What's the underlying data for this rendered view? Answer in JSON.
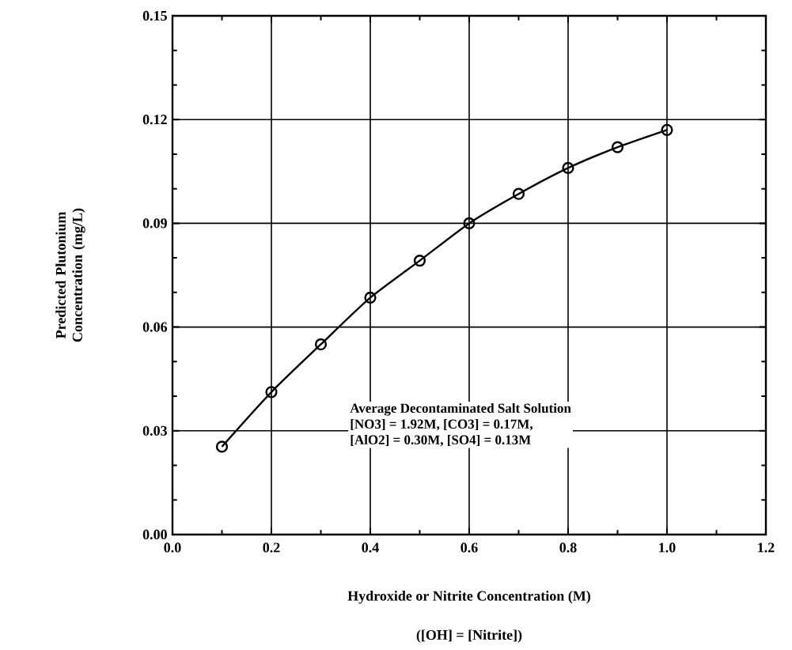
{
  "chart_data": {
    "type": "line",
    "xlabel": "Hydroxide or Nitrite Concentration (M)",
    "ylabel": "Predicted Plutonium Concentration (mg/L)",
    "annotations": [
      "Average Decontaminated Salt Solution",
      "[NO3] = 1.92M, [CO3] = 0.17M,",
      "[AlO2] = 0.30M, [SO4] = 0.13M",
      "([OH] = [Nitrite])"
    ],
    "x": [
      0.1,
      0.2,
      0.3,
      0.4,
      0.5,
      0.6,
      0.7,
      0.8,
      0.9,
      1.0
    ],
    "series": [
      {
        "color": "#000000",
        "values": [
          0.0254,
          0.0412,
          0.055,
          0.0685,
          0.0792,
          0.09,
          0.0985,
          0.106,
          0.112,
          0.117
        ]
      }
    ],
    "xlim": [
      0,
      1.2
    ],
    "ylim": [
      0,
      0.15
    ],
    "xticks": [
      {
        "value": 0,
        "label": "0.0"
      },
      0.2,
      0.4,
      0.6,
      0.8,
      {
        "value": 1.0,
        "label": "1.0"
      },
      1.2
    ],
    "yticks": [
      {
        "value": 0,
        "label": "0.00"
      },
      0.03,
      0.06,
      0.09,
      {
        "value": 0.12,
        "label": "0.12"
      },
      {
        "value": 0.15,
        "label": "0.15"
      }
    ],
    "grid": true,
    "marker": "circle",
    "line_style": "solid"
  }
}
